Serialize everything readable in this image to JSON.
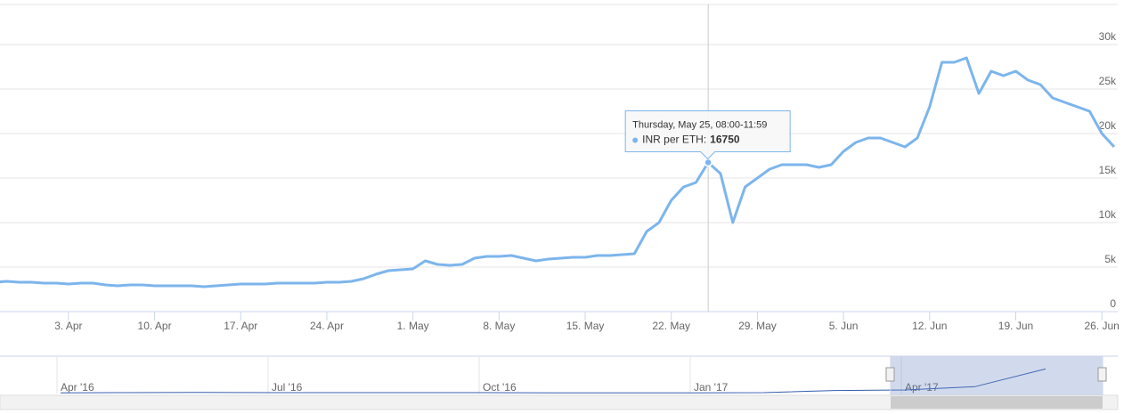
{
  "chart_data": [
    {
      "type": "line",
      "x": [
        "Mar 28",
        "Mar 29",
        "Mar 30",
        "Mar 31",
        "Apr 1",
        "Apr 2",
        "Apr 3",
        "Apr 4",
        "Apr 5",
        "Apr 6",
        "Apr 7",
        "Apr 8",
        "Apr 9",
        "Apr 10",
        "Apr 11",
        "Apr 12",
        "Apr 13",
        "Apr 14",
        "Apr 15",
        "Apr 16",
        "Apr 17",
        "Apr 18",
        "Apr 19",
        "Apr 20",
        "Apr 21",
        "Apr 22",
        "Apr 23",
        "Apr 24",
        "Apr 25",
        "Apr 26",
        "Apr 27",
        "Apr 28",
        "Apr 29",
        "Apr 30",
        "May 1",
        "May 2",
        "May 3",
        "May 4",
        "May 5",
        "May 6",
        "May 7",
        "May 8",
        "May 9",
        "May 10",
        "May 11",
        "May 12",
        "May 13",
        "May 14",
        "May 15",
        "May 16",
        "May 17",
        "May 18",
        "May 19",
        "May 20",
        "May 21",
        "May 22",
        "May 23",
        "May 24",
        "May 25",
        "May 26",
        "May 27",
        "May 28",
        "May 29",
        "May 30",
        "May 31",
        "Jun 1",
        "Jun 2",
        "Jun 3",
        "Jun 4",
        "Jun 5",
        "Jun 6",
        "Jun 7",
        "Jun 8",
        "Jun 9",
        "Jun 10",
        "Jun 11",
        "Jun 12",
        "Jun 13",
        "Jun 14",
        "Jun 15",
        "Jun 16",
        "Jun 17",
        "Jun 18",
        "Jun 19",
        "Jun 20",
        "Jun 21",
        "Jun 22",
        "Jun 23",
        "Jun 24",
        "Jun 25",
        "Jun 26",
        "Jun 27"
      ],
      "series": [
        {
          "name": "INR per ETH",
          "color": "#7cb5ec",
          "values": [
            3300,
            3400,
            3300,
            3300,
            3200,
            3200,
            3100,
            3200,
            3200,
            3000,
            2900,
            3000,
            3000,
            2900,
            2900,
            2900,
            2900,
            2800,
            2900,
            3000,
            3100,
            3100,
            3100,
            3200,
            3200,
            3200,
            3200,
            3300,
            3300,
            3400,
            3700,
            4200,
            4600,
            4700,
            4800,
            5700,
            5300,
            5200,
            5300,
            6000,
            6200,
            6200,
            6300,
            6000,
            5700,
            5900,
            6000,
            6100,
            6100,
            6300,
            6300,
            6400,
            6500,
            9000,
            10000,
            12500,
            14000,
            14500,
            16750,
            15500,
            10000,
            14000,
            15000,
            16000,
            16500,
            16500,
            16500,
            16200,
            16500,
            18000,
            19000,
            19500,
            19500,
            19000,
            18500,
            19500,
            23000,
            28000,
            28000,
            28500,
            24500,
            27000,
            26500,
            27000,
            26000,
            25500,
            24000,
            23500,
            23000,
            22500,
            20000,
            18500
          ]
        }
      ],
      "xlim": [
        "Mar 28",
        "Jun 27"
      ],
      "xticks": [
        {
          "value": "Apr 3",
          "label": "3. Apr"
        },
        {
          "value": "Apr 10",
          "label": "10. Apr"
        },
        {
          "value": "Apr 17",
          "label": "17. Apr"
        },
        {
          "value": "Apr 24",
          "label": "24. Apr"
        },
        {
          "value": "May 1",
          "label": "1. May"
        },
        {
          "value": "May 8",
          "label": "8. May"
        },
        {
          "value": "May 15",
          "label": "15. May"
        },
        {
          "value": "May 22",
          "label": "22. May"
        },
        {
          "value": "May 29",
          "label": "29. May"
        },
        {
          "value": "Jun 5",
          "label": "5. Jun"
        },
        {
          "value": "Jun 12",
          "label": "12. Jun"
        },
        {
          "value": "Jun 19",
          "label": "19. Jun"
        },
        {
          "value": "Jun 26",
          "label": "26. Jun"
        }
      ],
      "ylim": [
        0,
        35000
      ],
      "yticks": [
        0,
        {
          "value": 5000,
          "label": "5k"
        },
        {
          "value": 10000,
          "label": "10k"
        },
        {
          "value": 15000,
          "label": "15k"
        },
        {
          "value": 20000,
          "label": "20k"
        },
        {
          "value": 25000,
          "label": "25k"
        },
        {
          "value": 30000,
          "label": "30k"
        }
      ],
      "grid": true,
      "tooltip": {
        "x": "May 25",
        "header": "Thursday, May 25, 08:00-11:59",
        "label": "INR per ETH:",
        "value": 16750
      }
    },
    {
      "type": "line",
      "x": [
        "Apr '16",
        "May '16",
        "Jun '16",
        "Jul '16",
        "Aug '16",
        "Sep '16",
        "Oct '16",
        "Nov '16",
        "Dec '16",
        "Jan '17",
        "Feb '17",
        "Mar '17",
        "Apr '17",
        "May '17",
        "Jun '17"
      ],
      "series": [
        {
          "name": "INR per ETH",
          "color": "#335cad",
          "values": [
            700,
            800,
            1000,
            800,
            800,
            850,
            800,
            650,
            550,
            700,
            800,
            2800,
            3300,
            6500,
            23000
          ]
        }
      ],
      "xlim": [
        "Mar '16",
        "Jul '17"
      ],
      "xticks": [
        "Apr '16",
        "Jul '16",
        "Oct '16",
        "Jan '17",
        "Apr '17"
      ],
      "ylim": [
        0,
        35000
      ]
    }
  ]
}
